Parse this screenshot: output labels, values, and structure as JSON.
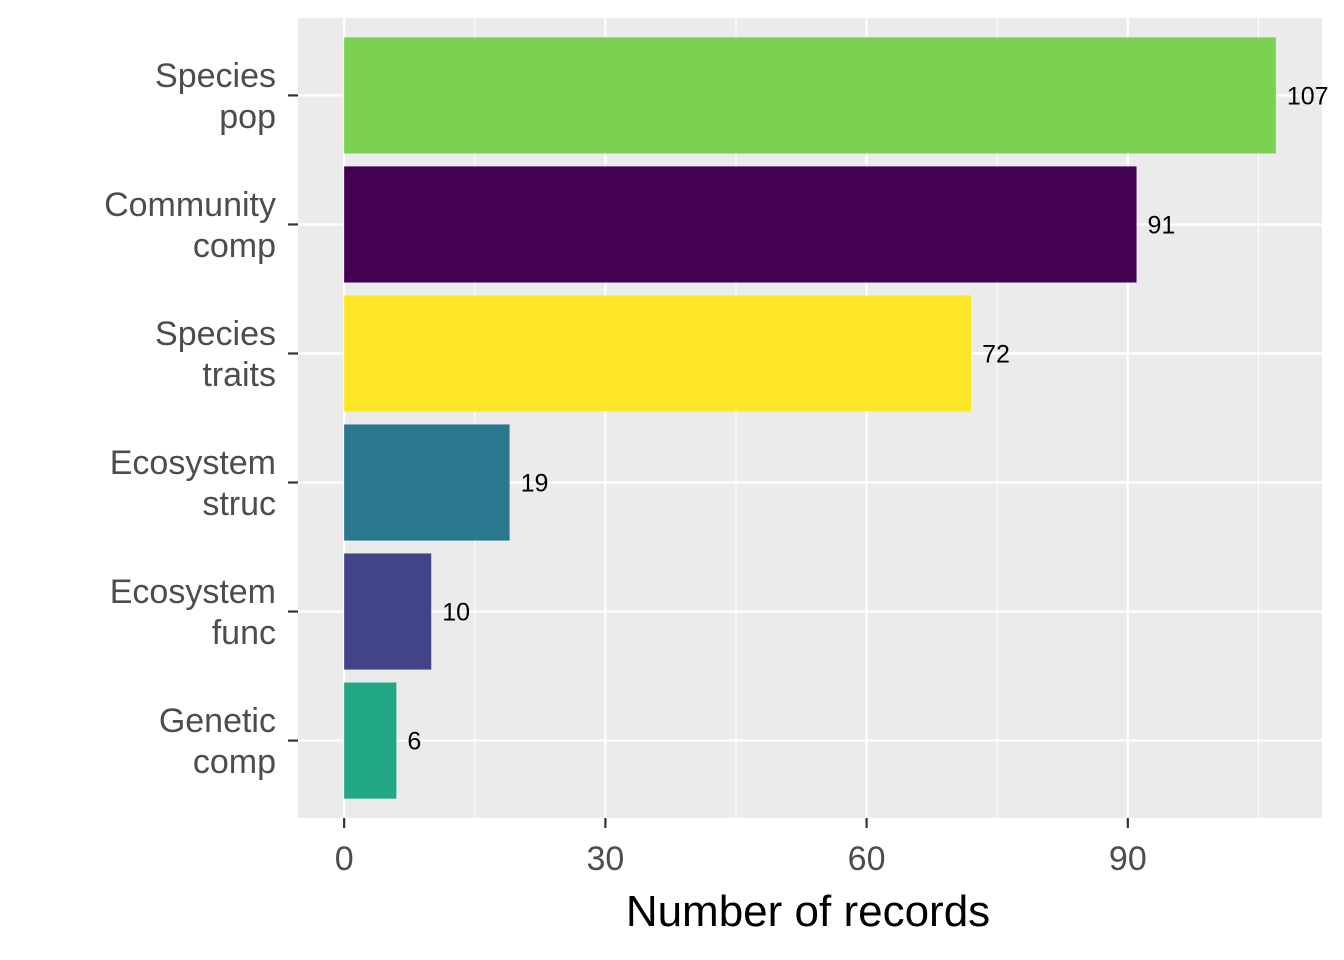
{
  "chart_data": {
    "type": "bar",
    "orientation": "horizontal",
    "categories": [
      "Species\npop",
      "Community\ncomp",
      "Species\ntraits",
      "Ecosystem\nstruc",
      "Ecosystem\nfunc",
      "Genetic\ncomp"
    ],
    "values": [
      107,
      91,
      72,
      19,
      10,
      6
    ],
    "data_labels": [
      "107",
      "91",
      "72",
      "19",
      "10",
      "6"
    ],
    "bar_colors": [
      "#7AD151",
      "#440154",
      "#FDE725",
      "#2A788E",
      "#414487",
      "#22A884"
    ],
    "title": "",
    "xlabel": "Number of records",
    "ylabel": "",
    "xlim": [
      -5.3,
      112.3
    ],
    "x_ticks": [
      0,
      30,
      60,
      90
    ],
    "x_tick_labels": [
      "0",
      "30",
      "60",
      "90"
    ],
    "grid": true,
    "legend": "none",
    "panel_background": "#EBEBEB",
    "gridline_color": "#FFFFFF"
  }
}
